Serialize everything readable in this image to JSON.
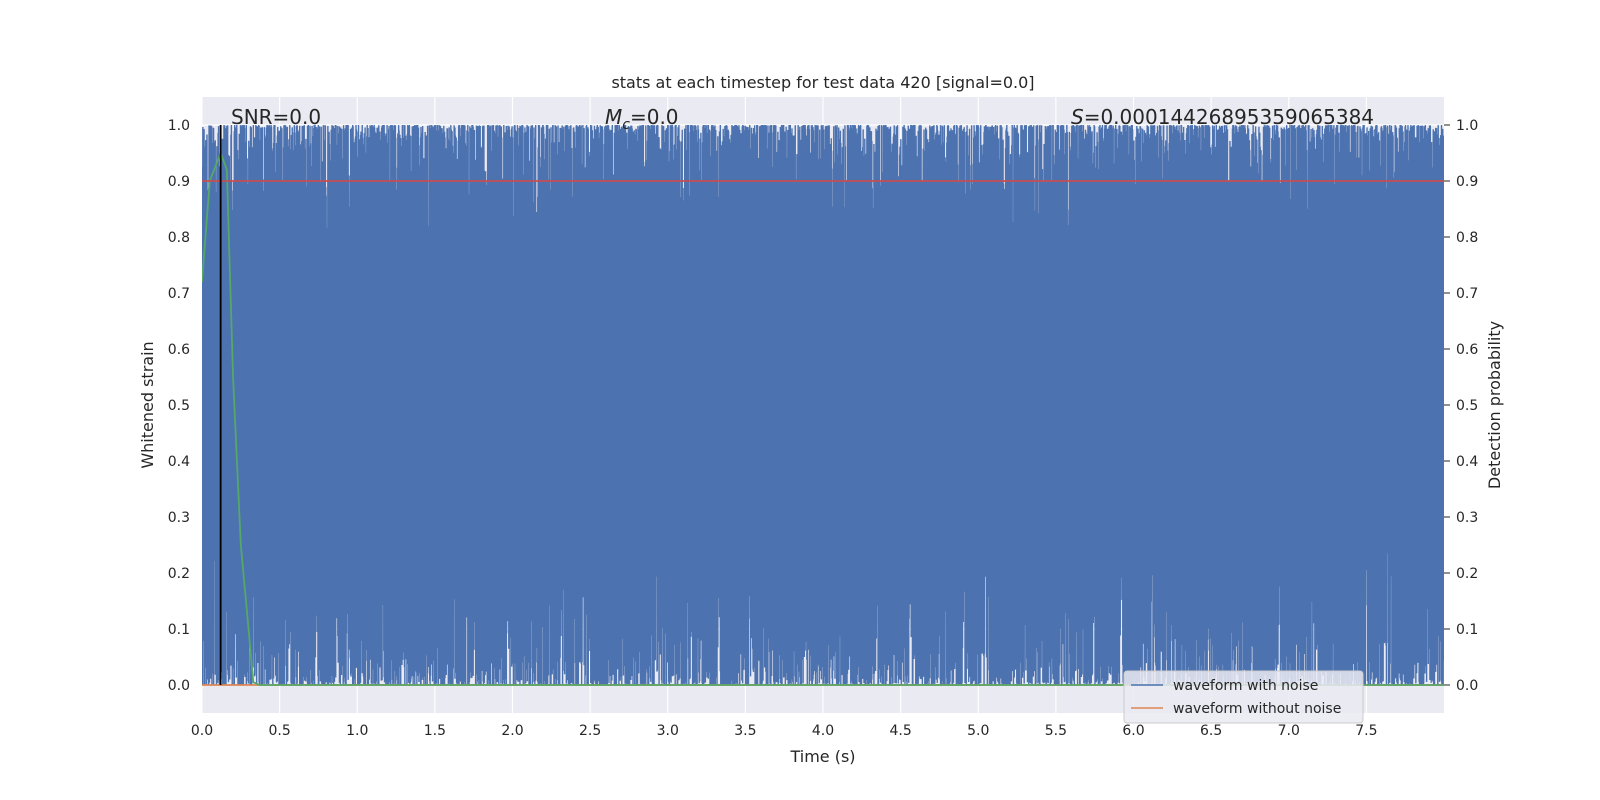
{
  "chart_data": {
    "type": "line",
    "title": "stats at each timestep for test data 420 [signal=0.0]",
    "xlabel": "Time (s)",
    "ylabel_left": "Whitened strain",
    "ylabel_right": "Detection probability",
    "xlim": [
      0.0,
      8.0
    ],
    "ylim": [
      -0.05,
      1.05
    ],
    "x_ticks": [
      "0.0",
      "0.5",
      "1.0",
      "1.5",
      "2.0",
      "2.5",
      "3.0",
      "3.5",
      "4.0",
      "4.5",
      "5.0",
      "5.5",
      "6.0",
      "6.5",
      "7.0",
      "7.5"
    ],
    "x_tick_values": [
      0,
      0.5,
      1,
      1.5,
      2,
      2.5,
      3,
      3.5,
      4,
      4.5,
      5,
      5.5,
      6,
      6.5,
      7,
      7.5
    ],
    "y_ticks": [
      "0.0",
      "0.1",
      "0.2",
      "0.3",
      "0.4",
      "0.5",
      "0.6",
      "0.7",
      "0.8",
      "0.9",
      "1.0"
    ],
    "y_tick_values": [
      0,
      0.1,
      0.2,
      0.3,
      0.4,
      0.5,
      0.6,
      0.7,
      0.8,
      0.9,
      1.0
    ],
    "grid": true,
    "annotations": {
      "snr": "SNR=0.0",
      "mc": "=0.0",
      "mc_symbol": "M",
      "mc_sub": "c",
      "s": "=0.00014426895359065384",
      "s_symbol": "S"
    },
    "series": [
      {
        "name": "waveform with noise",
        "color": "#4c72b0",
        "description_type": "noise band",
        "approx_range": [
          0.0,
          1.0
        ]
      },
      {
        "name": "waveform without noise",
        "color": "#dd8452",
        "x": [
          0.0,
          8.0
        ],
        "y": [
          0.0,
          0.0
        ]
      },
      {
        "color": "#55a868",
        "x": [
          0.0,
          0.05,
          0.12,
          0.16,
          0.2,
          0.25,
          0.3,
          0.33,
          0.37,
          0.5,
          1.0,
          8.0
        ],
        "y": [
          0.72,
          0.9,
          0.95,
          0.92,
          0.55,
          0.25,
          0.1,
          0.005,
          0.0,
          0.0,
          0.0,
          0.0
        ]
      },
      {
        "color": "#c44e52",
        "x": [
          0.0,
          8.0
        ],
        "y": [
          0.9,
          0.9
        ]
      }
    ],
    "vline": {
      "x": 0.12,
      "y0": 0.0,
      "y1": 1.0,
      "color": "#000000"
    },
    "legend": {
      "placement": "lower-right",
      "entries": [
        "waveform with noise",
        "waveform without noise"
      ]
    }
  }
}
